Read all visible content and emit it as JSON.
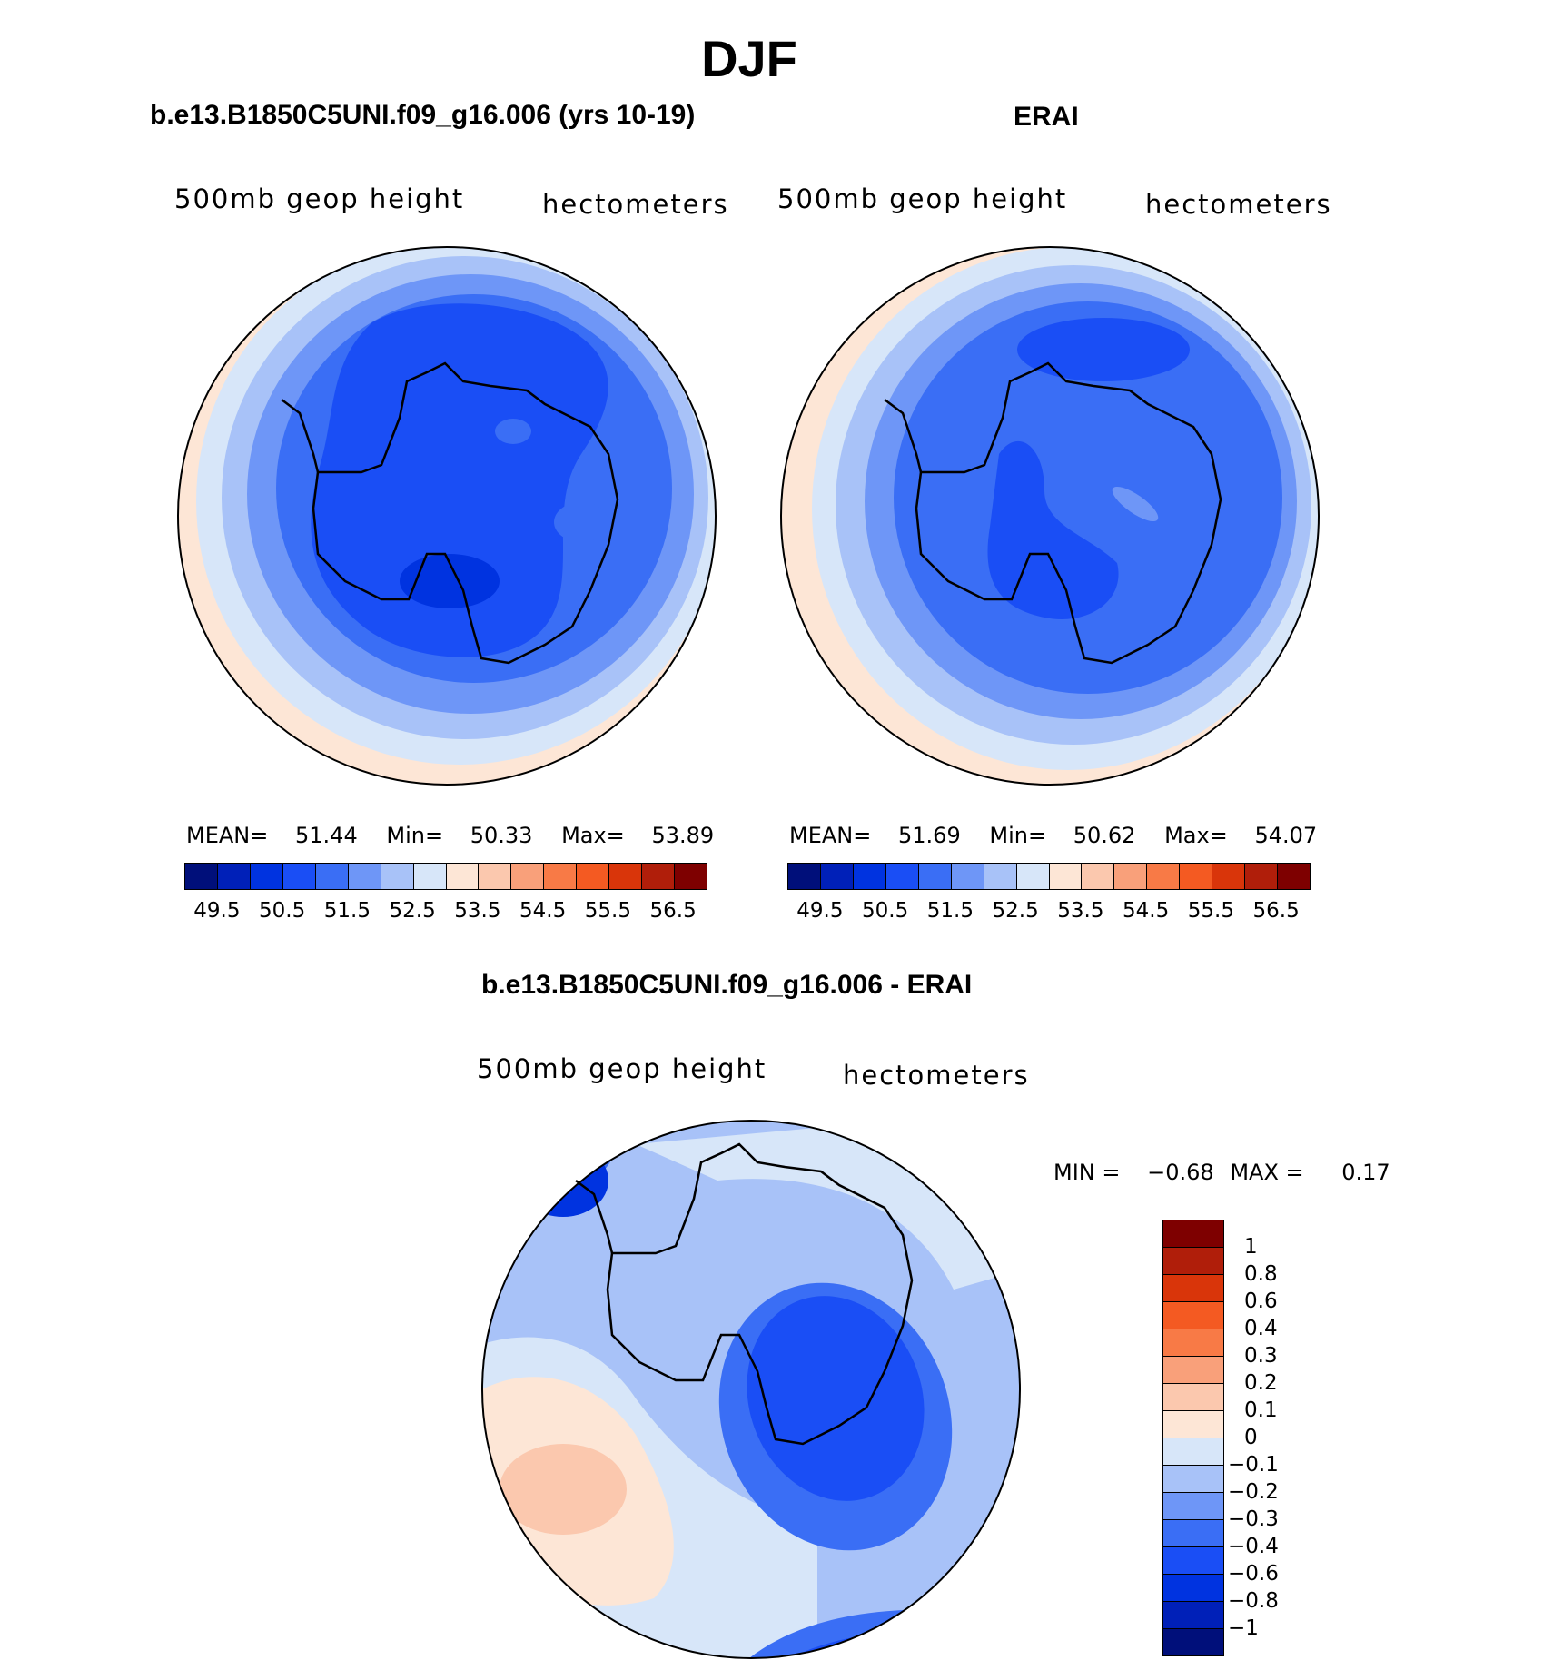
{
  "figure": {
    "season": "DJF",
    "top_left_title": "b.e13.B1850C5UNI.f09_g16.006 (yrs 10-19)",
    "top_right_title": "ERAI",
    "bottom_title": "b.e13.B1850C5UNI.f09_g16.006 - ERAI"
  },
  "chart_data": [
    {
      "type": "heatmap",
      "projection": "polar-stereographic south",
      "title": "b.e13.B1850C5UNI.f09_g16.006 (yrs 10-19)",
      "left_label": "500mb geop height",
      "right_label": "hectometers",
      "stats": {
        "mean_label": "MEAN=",
        "mean": "51.44",
        "min_label": "Min=",
        "min": "50.33",
        "max_label": "Max=",
        "max": "53.89"
      },
      "colorbar_ticks": [
        "49.5",
        "50.5",
        "51.5",
        "52.5",
        "53.5",
        "54.5",
        "55.5",
        "56.5"
      ]
    },
    {
      "type": "heatmap",
      "projection": "polar-stereographic south",
      "title": "ERAI",
      "left_label": "500mb geop height",
      "right_label": "hectometers",
      "stats": {
        "mean_label": "MEAN=",
        "mean": "51.69",
        "min_label": "Min=",
        "min": "50.62",
        "max_label": "Max=",
        "max": "54.07"
      },
      "colorbar_ticks": [
        "49.5",
        "50.5",
        "51.5",
        "52.5",
        "53.5",
        "54.5",
        "55.5",
        "56.5"
      ]
    },
    {
      "type": "heatmap",
      "projection": "polar-stereographic south",
      "title": "b.e13.B1850C5UNI.f09_g16.006 - ERAI",
      "left_label": "500mb geop height",
      "right_label": "hectometers",
      "stats": {
        "min_label": "MIN =",
        "min": "−0.68",
        "max_label": "MAX =",
        "max": "0.17"
      },
      "colorbar_ticks": [
        "1",
        "0.8",
        "0.6",
        "0.4",
        "0.3",
        "0.2",
        "0.1",
        "0",
        "−0.1",
        "−0.2",
        "−0.3",
        "−0.4",
        "−0.6",
        "−0.8",
        "−1"
      ]
    }
  ],
  "colors": {
    "abs_scale": [
      "#000f7a",
      "#0020b8",
      "#0033e0",
      "#1a4ef5",
      "#3a6ef5",
      "#6e96f7",
      "#a8c2f8",
      "#d7e6f9",
      "#fde6d6",
      "#fbc8ae",
      "#f9a07a",
      "#f87a46",
      "#f45a22",
      "#d9350a",
      "#b01e0a",
      "#7e0000"
    ],
    "diff_scale": [
      "#7e0000",
      "#b01e0a",
      "#d9350a",
      "#f45a22",
      "#f87a46",
      "#f9a07a",
      "#fbc8ae",
      "#fde6d6",
      "#d7e6f9",
      "#a8c2f8",
      "#6e96f7",
      "#3a6ef5",
      "#1a4ef5",
      "#0033e0",
      "#0020b8",
      "#000f7a"
    ]
  }
}
